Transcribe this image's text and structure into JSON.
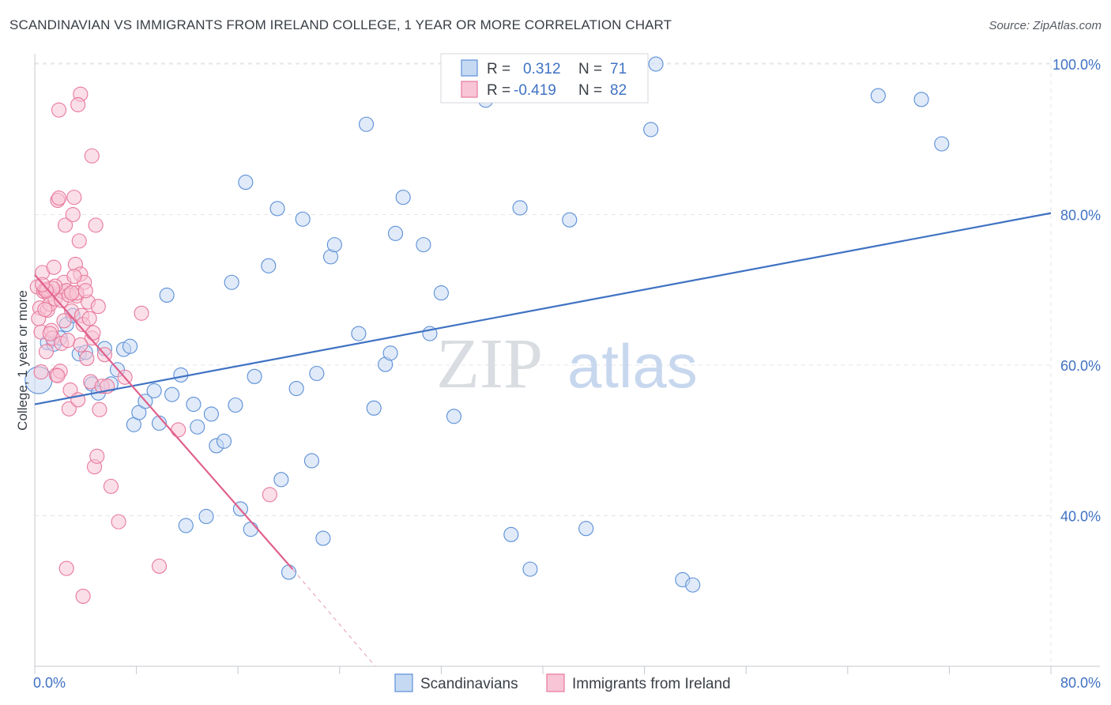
{
  "title": "SCANDINAVIAN VS IMMIGRANTS FROM IRELAND COLLEGE, 1 YEAR OR MORE CORRELATION CHART",
  "source": "Source: ZipAtlas.com",
  "watermark": {
    "zip": "ZIP",
    "atlas": "atlas"
  },
  "chart_data": {
    "type": "scatter",
    "xlabel": "",
    "ylabel": "College, 1 year or more",
    "xlim": [
      0,
      80
    ],
    "ylim": [
      20,
      102
    ],
    "x_tick_labels": [
      {
        "value": 0,
        "label": "0.0%"
      },
      {
        "value": 80,
        "label": "80.0%"
      }
    ],
    "y_tick_labels": [
      {
        "value": 40,
        "label": "40.0%"
      },
      {
        "value": 60,
        "label": "60.0%"
      },
      {
        "value": 80,
        "label": "80.0%"
      },
      {
        "value": 100,
        "label": "100.0%"
      }
    ],
    "grid": true,
    "legend_placement": "top-center",
    "stats": [
      {
        "r_label": "R =",
        "r_value": "0.312",
        "n_label": "N =",
        "n_value": "71"
      },
      {
        "r_label": "R =",
        "r_value": "-0.419",
        "n_label": "N =",
        "n_value": "82"
      }
    ],
    "series": [
      {
        "name": "Scandinavians",
        "color": "#5b8fd8",
        "fill": "#c6d9f3",
        "trend": {
          "x": [
            0,
            80
          ],
          "y": [
            54.8,
            80.2
          ],
          "dashed_to": null
        },
        "points": [
          [
            1,
            63
          ],
          [
            1.5,
            62.8
          ],
          [
            2,
            63.6
          ],
          [
            2.5,
            65.4
          ],
          [
            3,
            66.6
          ],
          [
            3.5,
            61.5
          ],
          [
            4,
            61.7
          ],
          [
            4.5,
            57.5
          ],
          [
            5,
            56.3
          ],
          [
            5.5,
            62.2
          ],
          [
            6,
            57.5
          ],
          [
            6.5,
            59.4
          ],
          [
            7,
            62.1
          ],
          [
            7.5,
            62.5
          ],
          [
            7.8,
            52.1
          ],
          [
            8.2,
            53.7
          ],
          [
            8.7,
            55.2
          ],
          [
            9.4,
            56.6
          ],
          [
            9.8,
            52.3
          ],
          [
            10.4,
            69.3
          ],
          [
            10.8,
            56.1
          ],
          [
            11.5,
            58.7
          ],
          [
            11.9,
            38.7
          ],
          [
            12.5,
            54.8
          ],
          [
            12.8,
            51.8
          ],
          [
            13.5,
            39.9
          ],
          [
            13.9,
            53.5
          ],
          [
            14.3,
            49.3
          ],
          [
            14.9,
            49.9
          ],
          [
            15.5,
            71
          ],
          [
            15.8,
            54.7
          ],
          [
            16.2,
            40.9
          ],
          [
            16.6,
            84.3
          ],
          [
            17,
            38.2
          ],
          [
            17.3,
            58.5
          ],
          [
            18.4,
            73.2
          ],
          [
            19.1,
            80.8
          ],
          [
            19.4,
            44.8
          ],
          [
            20,
            32.5
          ],
          [
            20.6,
            56.9
          ],
          [
            21.1,
            79.4
          ],
          [
            21.8,
            47.3
          ],
          [
            22.2,
            58.9
          ],
          [
            22.7,
            37
          ],
          [
            23.3,
            74.4
          ],
          [
            23.6,
            76
          ],
          [
            25.5,
            64.2
          ],
          [
            26.1,
            92
          ],
          [
            26.7,
            54.3
          ],
          [
            27.6,
            60.1
          ],
          [
            28,
            61.6
          ],
          [
            28.4,
            77.5
          ],
          [
            29,
            82.3
          ],
          [
            30.6,
            76
          ],
          [
            31.1,
            64.2
          ],
          [
            32,
            69.6
          ],
          [
            33,
            53.2
          ],
          [
            35.5,
            95.2
          ],
          [
            37.5,
            37.5
          ],
          [
            38.2,
            80.9
          ],
          [
            39,
            32.9
          ],
          [
            42.1,
            79.3
          ],
          [
            43.4,
            38.3
          ],
          [
            48.9,
            100
          ],
          [
            48.5,
            91.3
          ],
          [
            51,
            31.5
          ],
          [
            51.8,
            30.8
          ],
          [
            66.4,
            95.8
          ],
          [
            69.8,
            95.3
          ],
          [
            71.4,
            89.4
          ],
          [
            0.3,
            58
          ]
        ]
      },
      {
        "name": "Immigrants from Ireland",
        "color": "#e8799c",
        "fill": "#f7c5d5",
        "trend": {
          "x": [
            0,
            20.3
          ],
          "y": [
            72,
            32.9
          ],
          "dashed_to": [
            26.8,
            20
          ]
        },
        "points": [
          [
            0.2,
            70.4
          ],
          [
            0.4,
            67.6
          ],
          [
            0.5,
            64.4
          ],
          [
            0.6,
            72.3
          ],
          [
            0.7,
            69.8
          ],
          [
            0.8,
            70
          ],
          [
            0.9,
            61.8
          ],
          [
            1,
            67.3
          ],
          [
            1.1,
            69.4
          ],
          [
            1.2,
            68.1
          ],
          [
            1.3,
            64.6
          ],
          [
            1.4,
            63.6
          ],
          [
            1.5,
            73
          ],
          [
            1.6,
            68.8
          ],
          [
            1.7,
            58.7
          ],
          [
            1.8,
            81.9
          ],
          [
            1.9,
            82.2
          ],
          [
            2,
            59.2
          ],
          [
            2.1,
            62.9
          ],
          [
            2.2,
            69.8
          ],
          [
            2.3,
            71
          ],
          [
            2.4,
            78.6
          ],
          [
            2.5,
            69.9
          ],
          [
            2.6,
            63.3
          ],
          [
            2.7,
            54.2
          ],
          [
            2.8,
            56.7
          ],
          [
            2.9,
            67.2
          ],
          [
            3,
            80
          ],
          [
            3.1,
            82.3
          ],
          [
            3.2,
            73.4
          ],
          [
            3.3,
            69.2
          ],
          [
            3.4,
            55.4
          ],
          [
            3.5,
            76.5
          ],
          [
            3.6,
            72.1
          ],
          [
            3.7,
            66.6
          ],
          [
            3.8,
            65.4
          ],
          [
            3.9,
            71
          ],
          [
            4.1,
            60.9
          ],
          [
            4.2,
            68.4
          ],
          [
            4.3,
            66.2
          ],
          [
            4.4,
            57.8
          ],
          [
            4.5,
            63.6
          ],
          [
            4.7,
            46.5
          ],
          [
            4.9,
            47.9
          ],
          [
            5.1,
            54.1
          ],
          [
            5.3,
            57.2
          ],
          [
            5.5,
            61.4
          ],
          [
            5.7,
            57.2
          ],
          [
            6,
            43.9
          ],
          [
            6.6,
            39.2
          ],
          [
            7.1,
            58.4
          ],
          [
            8.4,
            66.9
          ],
          [
            9.8,
            33.3
          ],
          [
            11.3,
            51.4
          ],
          [
            18.5,
            42.8
          ],
          [
            2.5,
            33
          ],
          [
            3.6,
            96
          ],
          [
            1.9,
            93.9
          ],
          [
            3.4,
            94.6
          ],
          [
            4.5,
            87.8
          ],
          [
            4.8,
            78.6
          ],
          [
            3.8,
            29.3
          ],
          [
            0.5,
            59.1
          ],
          [
            1,
            70.1
          ],
          [
            1.6,
            70.5
          ],
          [
            2.1,
            68.6
          ],
          [
            2.7,
            69.3
          ],
          [
            3.3,
            69.6
          ],
          [
            0.3,
            66.2
          ],
          [
            1.2,
            64.2
          ],
          [
            4,
            69.9
          ],
          [
            1.8,
            58.6
          ],
          [
            2.9,
            69.6
          ],
          [
            0.8,
            67.4
          ],
          [
            3.6,
            62.7
          ],
          [
            4.6,
            64.3
          ],
          [
            1.4,
            70.2
          ],
          [
            2.3,
            65.9
          ],
          [
            0.9,
            69.9
          ],
          [
            3.1,
            71.8
          ],
          [
            5,
            67.8
          ],
          [
            0.6,
            70.7
          ]
        ]
      }
    ]
  },
  "legend_bottom": [
    "Scandinavians",
    "Immigrants from Ireland"
  ]
}
